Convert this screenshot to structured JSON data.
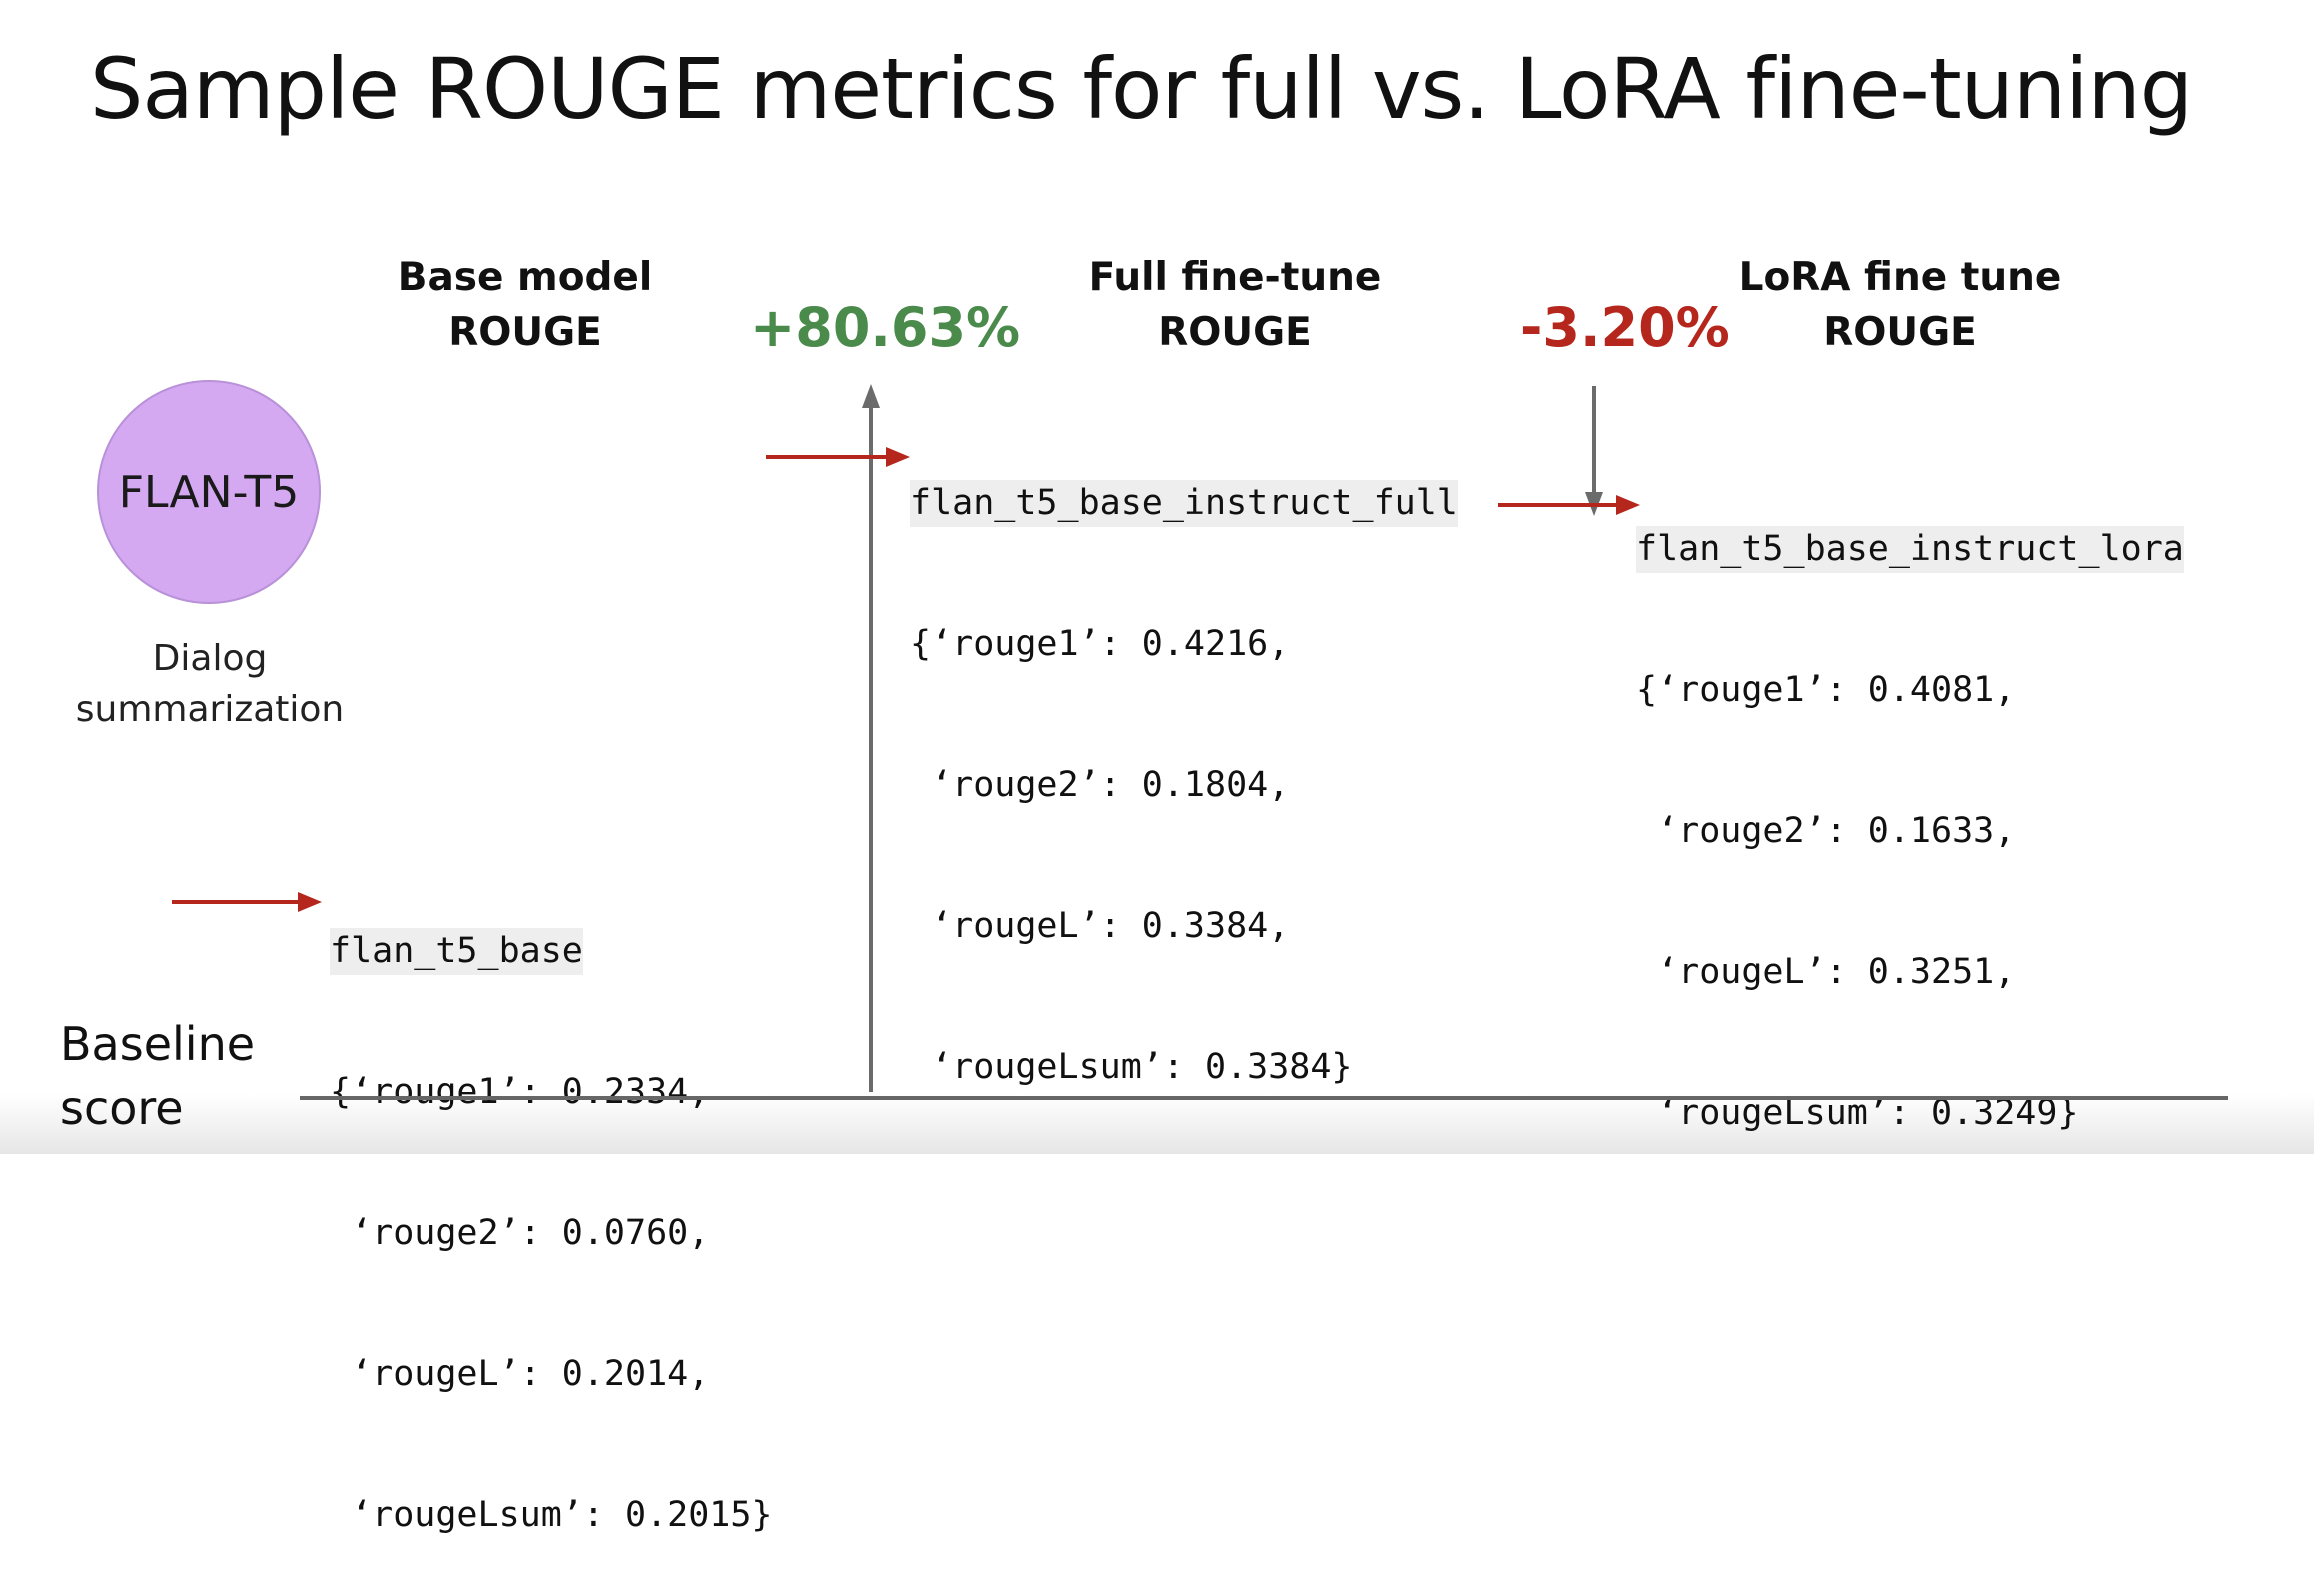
{
  "title": "Sample ROUGE metrics for full vs. LoRA fine-tuning",
  "model": {
    "name": "FLAN-T5",
    "caption_line1": "Dialog",
    "caption_line2": "summarization"
  },
  "baseline_label": {
    "line1": "Baseline",
    "line2": "score"
  },
  "columns": [
    {
      "header_line1": "Base model",
      "header_line2": "ROUGE",
      "model_name": "flan_t5_base",
      "metrics": [
        "{‘rouge1’: 0.2334,",
        " ‘rouge2’: 0.0760,",
        " ‘rougeL’: 0.2014,",
        " ‘rougeLsum’: 0.2015}"
      ]
    },
    {
      "header_line1": "Full fine-tune",
      "header_line2": "ROUGE",
      "change": "+80.63%",
      "model_name": "flan_t5_base_instruct_full",
      "metrics": [
        "{‘rouge1’: 0.4216,",
        " ‘rouge2’: 0.1804,",
        " ‘rougeL’: 0.3384,",
        " ‘rougeLsum’: 0.3384}"
      ]
    },
    {
      "header_line1": "LoRA  fine tune",
      "header_line2": "ROUGE",
      "change": "-3.20%",
      "model_name": "flan_t5_base_instruct_lora",
      "metrics": [
        "{‘rouge1’: 0.4081,",
        " ‘rouge2’: 0.1633,",
        " ‘rougeL’: 0.3251,",
        " ‘rougeLsum’: 0.3249}"
      ]
    }
  ],
  "colors": {
    "arrow_red": "#b5271d",
    "positive_green": "#4a8b4c",
    "negative_red": "#b5271d",
    "axis_gray": "#666666",
    "circle_fill": "#d4a9f1"
  }
}
